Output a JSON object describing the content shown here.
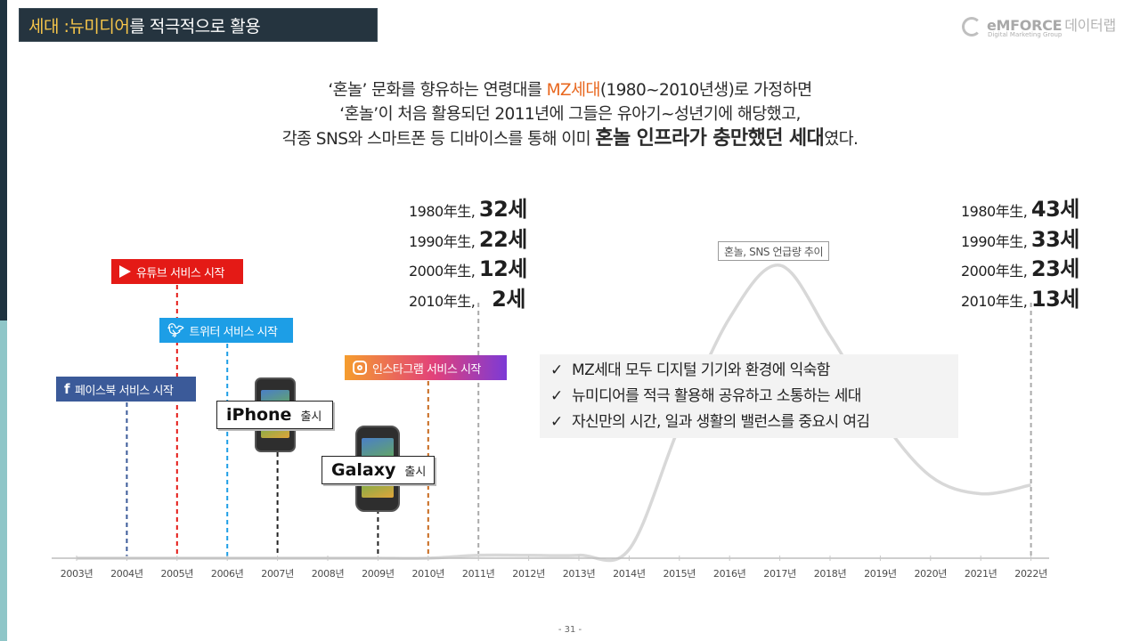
{
  "title": {
    "part1": "세대 : ",
    "part2": "뉴미디어",
    "part3": "를 적극적으로 활용"
  },
  "logo": {
    "brand": "eMFORCE",
    "sub": "데이터랩",
    "tagline": "Digital Marketing Group"
  },
  "intro": {
    "line1a": "‘혼놀’ 문화를 향유하는 연령대를 ",
    "line1b": "MZ세대",
    "line1c": "(1980~2010년생)로 가정하면",
    "line2": "‘혼놀’이 처음 활용되던 2011년에 그들은 유아기~성년기에 해당했고,",
    "line3a": "각종 SNS와 스마트폰 등 디바이스를 통해 이미 ",
    "line3b": "혼놀 인프라가 충만했던 세대",
    "line3c": "였다."
  },
  "ages_2011": [
    {
      "label": "1980年生, ",
      "value": "32세"
    },
    {
      "label": "1990年生, ",
      "value": "22세"
    },
    {
      "label": "2000年生, ",
      "value": "12세"
    },
    {
      "label": "2010年生, ",
      "value": "2세"
    }
  ],
  "ages_2022": [
    {
      "label": "1980年生, ",
      "value": "43세"
    },
    {
      "label": "1990年生, ",
      "value": "33세"
    },
    {
      "label": "2000年生, ",
      "value": "23세"
    },
    {
      "label": "2010年生, ",
      "value": "13세"
    }
  ],
  "sns": {
    "youtube": "유튜브 서비스 시작",
    "twitter": "트위터 서비스 시작",
    "facebook": "페이스북 서비스 시작",
    "instagram": "인스타그램 서비스 시작"
  },
  "devices": {
    "iphone_name": "iPhone",
    "iphone_release": "출시",
    "galaxy_name": "Galaxy",
    "galaxy_release": "출시"
  },
  "checks": [
    "MZ세대 모두 디지털 기기와 환경에 익숙함",
    "뉴미디어를 적극 활용해 공유하고 소통하는 세대",
    "자신만의 시간, 일과 생활의 밸런스를 중요시 여김"
  ],
  "check_mark": "✓",
  "trend_label": "혼놀, SNS 언급량 추이",
  "page_number": "- 31 -",
  "colors": {
    "youtube": "#e41a16",
    "twitter": "#1d9ee6",
    "facebook": "#3b5a99",
    "instagram": "#c13584",
    "accent": "#e8671e",
    "title_bg": "#25343f"
  },
  "chart_data": {
    "type": "line",
    "x": [
      "2003년",
      "2004년",
      "2005년",
      "2006년",
      "2007년",
      "2008년",
      "2009년",
      "2010년",
      "2011년",
      "2012년",
      "2013년",
      "2014년",
      "2015년",
      "2016년",
      "2017년",
      "2018년",
      "2019년",
      "2020년",
      "2021년",
      "2022년"
    ],
    "series": [
      {
        "name": "혼놀, SNS 언급량 추이",
        "values": [
          0,
          0,
          0,
          0,
          0,
          0,
          0,
          0,
          1,
          1,
          1,
          3,
          45,
          82,
          100,
          76,
          48,
          28,
          22,
          25
        ]
      }
    ],
    "markers": [
      {
        "year": "2004년",
        "label": "페이스북 서비스 시작",
        "color": "#3b5a99"
      },
      {
        "year": "2005년",
        "label": "유튜브 서비스 시작",
        "color": "#e41a16"
      },
      {
        "year": "2006년",
        "label": "트위터 서비스 시작",
        "color": "#1d9ee6"
      },
      {
        "year": "2007년",
        "label": "iPhone 출시",
        "color": "#222222"
      },
      {
        "year": "2009년",
        "label": "Galaxy 출시",
        "color": "#222222"
      },
      {
        "year": "2010년",
        "label": "인스타그램 서비스 시작",
        "color": "#c86a1e"
      },
      {
        "year": "2011년",
        "label": "",
        "color": "#aaaaaa"
      },
      {
        "year": "2022년",
        "label": "",
        "color": "#aaaaaa"
      }
    ]
  }
}
